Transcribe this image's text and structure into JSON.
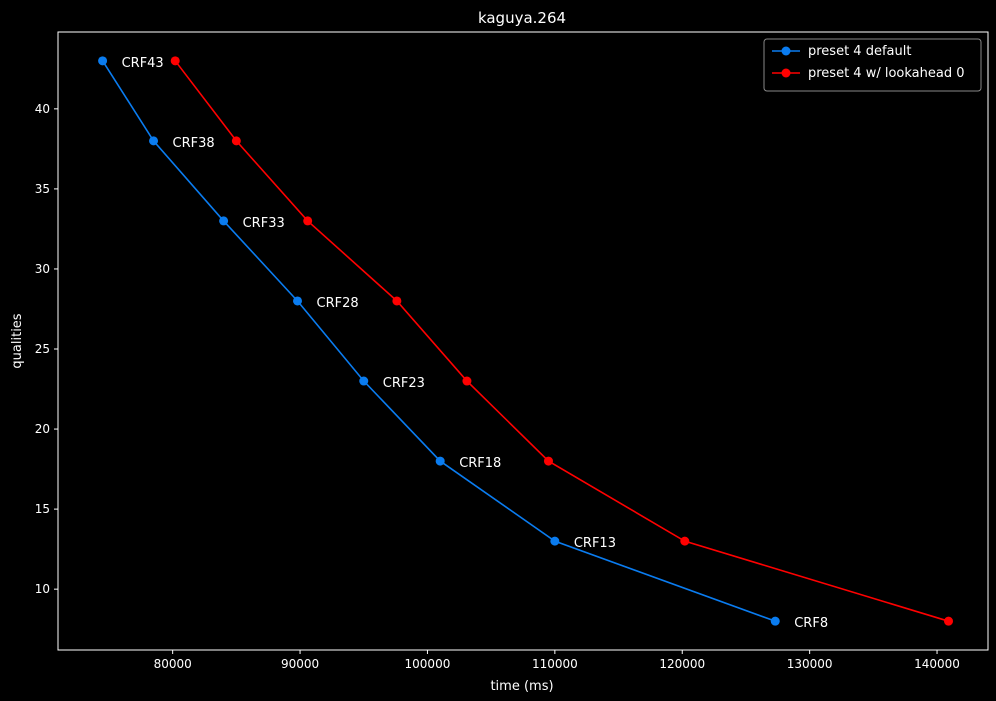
{
  "chart_data": {
    "type": "line",
    "title": "kaguya.264",
    "xlabel": "time (ms)",
    "ylabel": "qualities",
    "xlim": [
      71000,
      144000
    ],
    "ylim": [
      6.2,
      44.8
    ],
    "xticks": [
      80000,
      90000,
      100000,
      110000,
      120000,
      130000,
      140000
    ],
    "yticks": [
      10,
      15,
      20,
      25,
      30,
      35,
      40
    ],
    "grid": false,
    "legend_position": "top-right",
    "series": [
      {
        "name": "preset 4 default",
        "color": "#0a7cf0",
        "x": [
          74500,
          78500,
          84000,
          89800,
          95000,
          101000,
          110000,
          127300
        ],
        "y": [
          43,
          38,
          33,
          28,
          23,
          18,
          13,
          8
        ],
        "point_labels": [
          "CRF43",
          "CRF38",
          "CRF33",
          "CRF28",
          "CRF23",
          "CRF18",
          "CRF13",
          "CRF8"
        ]
      },
      {
        "name": "preset 4 w/ lookahead 0",
        "color": "#ff0000",
        "x": [
          80200,
          85000,
          90600,
          97600,
          103100,
          109500,
          120200,
          140900
        ],
        "y": [
          43,
          38,
          33,
          28,
          23,
          18,
          13,
          8
        ]
      }
    ]
  }
}
